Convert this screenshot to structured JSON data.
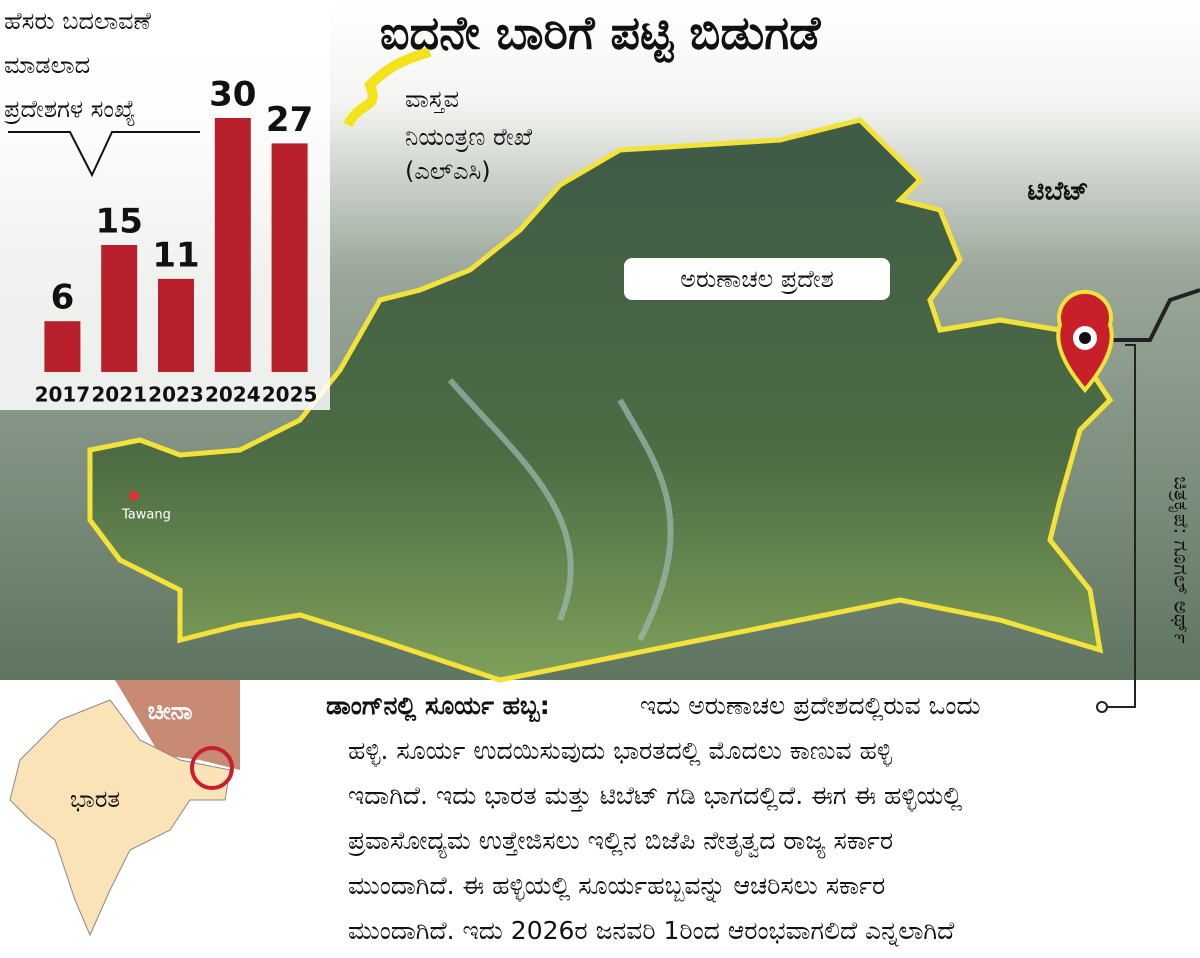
{
  "title": "ಐದನೇ ಬಾರಿಗೆ ಪಟ್ಟಿ ಬಿಡುಗಡೆ",
  "chart_data": {
    "type": "bar",
    "title_lines": [
      "ಹೆಸರು ಬದಲಾವಣೆ",
      "ಮಾಡಲಾದ",
      "ಪ್ರದೇಶಗಳ ಸಂಖ್ಯೆ"
    ],
    "categories": [
      "2017",
      "2021",
      "2023",
      "2024",
      "2025"
    ],
    "values": [
      6,
      15,
      11,
      30,
      27
    ],
    "color": "#b8202b",
    "ylim": [
      0,
      30
    ]
  },
  "map": {
    "legend": [
      "ವಾಸ್ತವ",
      "ನಿಯಂತ್ರಣ ರೇಖೆ",
      "(ಎಲ್ಎಸಿ)"
    ],
    "region_label": "ಅರುಣಾಚಲ ಪ್ರದೇಶ",
    "tibet_label": "ಟಿಬೆಟ್",
    "town_label": "Tawang",
    "credit": "ಚಿತ್ರಕೃಪೆ: ಗೂಗಲ್ ಅರ್ಥ್",
    "inset": {
      "china": "ಚೀನಾ",
      "india": "ಭಾರತ"
    }
  },
  "description": {
    "heading": "ಡಾಂಗ್‌ನಲ್ಲಿ ಸೂರ್ಯ ಹಬ್ಬ:",
    "lines": [
      "ಇದು ಅರುಣಾಚಲ ಪ್ರದೇಶದಲ್ಲಿರುವ ಒಂದು",
      "ಹಳ್ಳಿ. ಸೂರ್ಯ ಉದಯಿಸುವುದು ಭಾರತದಲ್ಲಿ ಮೊದಲು ಕಾಣುವ ಹಳ್ಳಿ",
      "ಇದಾಗಿದೆ. ಇದು ಭಾರತ ಮತ್ತು ಟಿಬೆಟ್ ಗಡಿ ಭಾಗದಲ್ಲಿದೆ. ಈಗ ಈ ಹಳ್ಳಿಯಲ್ಲಿ",
      "ಪ್ರವಾಸೋದ್ಯಮ ಉತ್ತೇಜಿಸಲು ಇಲ್ಲಿನ ಬಿಜೆಪಿ ನೇತೃತ್ವದ ರಾಜ್ಯ ಸರ್ಕಾರ",
      "ಮುಂದಾಗಿದೆ. ಈ ಹಳ್ಳಿಯಲ್ಲಿ ಸೂರ್ಯಹಬ್ಬವನ್ನು ಆಚರಿಸಲು ಸರ್ಕಾರ",
      "ಮುಂದಾಗಿದೆ. ಇದು 2026ರ ಜನವರಿ 1ರಿಂದ ಆರಂಭವಾಗಲಿದೆ ಎನ್ನಲಾಗಿದೆ"
    ]
  }
}
